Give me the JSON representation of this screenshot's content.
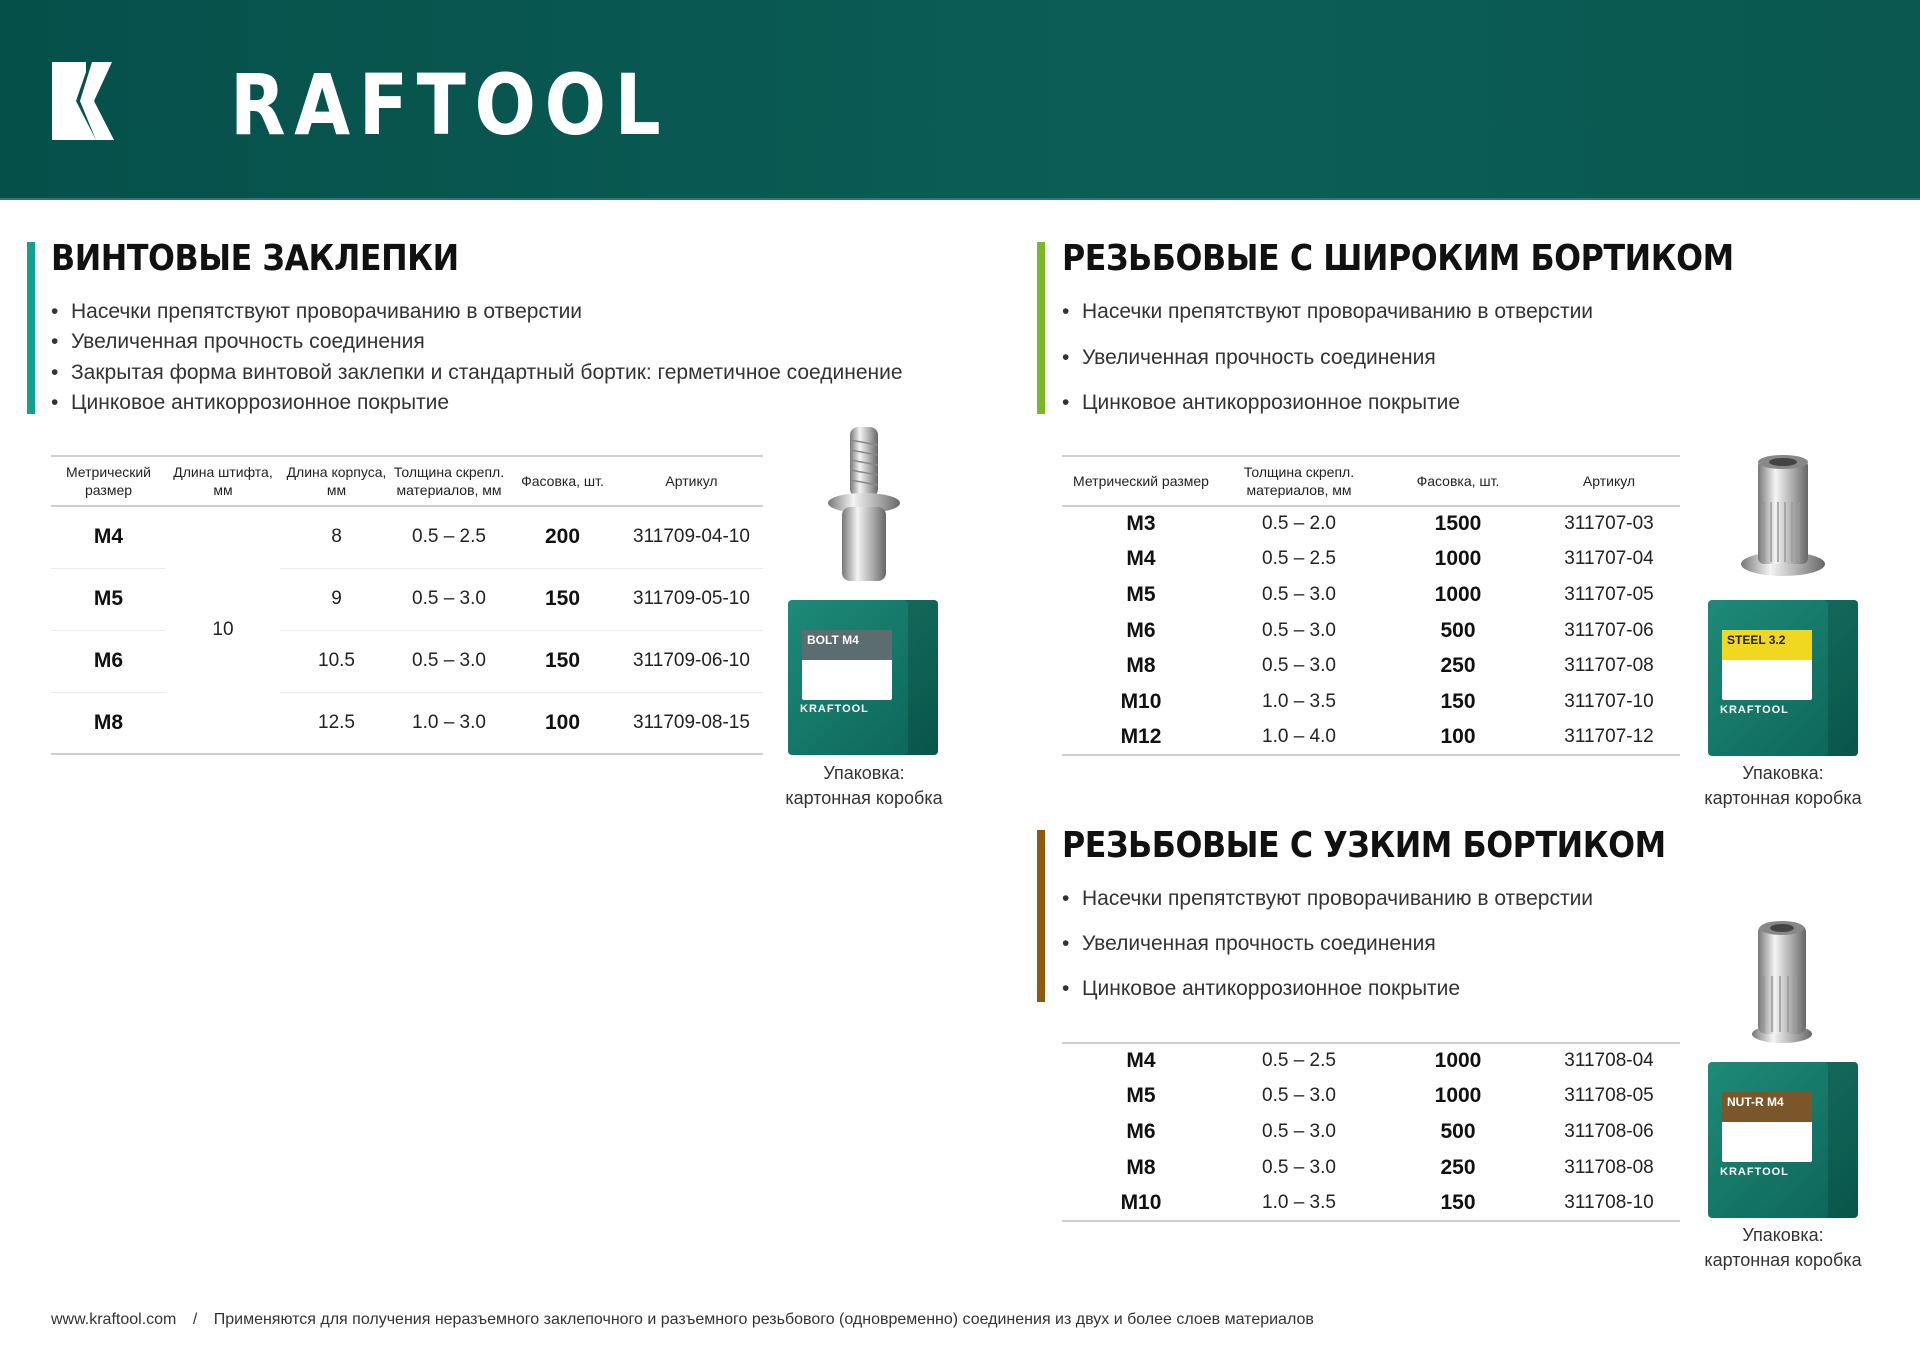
{
  "brand": {
    "logo_text": "KRAFTOOL",
    "color": "#0a5a52"
  },
  "sections": [
    {
      "title": "ВИНТОВЫЕ ЗАКЛЕПКИ",
      "accent": "#13a08f",
      "bullets": [
        "Насечки препятствуют проворачиванию в отверстии",
        "Увеличенная прочность соединения",
        "Закрытая форма винтовой заклепки и стандартный бортик: герметичное соединение",
        "Цинковое антикоррозионное покрытие"
      ],
      "headers": [
        "Метрический размер",
        "Длина штифта, мм",
        "Длина корпуса, мм",
        "Толщина скрепл. материалов, мм",
        "Фасовка, шт.",
        "Артикул"
      ],
      "pin_length": "10",
      "rows": [
        [
          "M4",
          "8",
          "0.5 – 2.5",
          "200",
          "311709-04-10"
        ],
        [
          "M5",
          "9",
          "0.5 – 3.0",
          "150",
          "311709-05-10"
        ],
        [
          "M6",
          "10.5",
          "0.5 – 3.0",
          "150",
          "311709-06-10"
        ],
        [
          "M8",
          "12.5",
          "1.0 – 3.0",
          "100",
          "311709-08-15"
        ]
      ],
      "caption": [
        "Упаковка:",
        "картонная коробка"
      ],
      "box_label": "BOLT M4"
    },
    {
      "title": "РЕЗЬБОВЫЕ С ШИРОКИМ БОРТИКОМ",
      "accent": "#7ab829",
      "bullets": [
        "Насечки препятствуют проворачиванию в отверстии",
        "Увеличенная прочность соединения",
        "Цинковое антикоррозионное покрытие"
      ],
      "headers": [
        "Метрический размер",
        "Толщина скрепл. материалов, мм",
        "Фасовка, шт.",
        "Артикул"
      ],
      "rows": [
        [
          "M3",
          "0.5 – 2.0",
          "1500",
          "311707-03"
        ],
        [
          "M4",
          "0.5 – 2.5",
          "1000",
          "311707-04"
        ],
        [
          "M5",
          "0.5 – 3.0",
          "1000",
          "311707-05"
        ],
        [
          "M6",
          "0.5 – 3.0",
          "500",
          "311707-06"
        ],
        [
          "M8",
          "0.5 – 3.0",
          "250",
          "311707-08"
        ],
        [
          "M10",
          "1.0 – 3.5",
          "150",
          "311707-10"
        ],
        [
          "M12",
          "1.0 – 4.0",
          "100",
          "311707-12"
        ]
      ],
      "caption": [
        "Упаковка:",
        "картонная коробка"
      ],
      "box_label": "STEEL 3.2"
    },
    {
      "title": "РЕЗЬБОВЫЕ С УЗКИМ БОРТИКОМ",
      "accent": "#8a5a10",
      "bullets": [
        "Насечки препятствуют проворачиванию в отверстии",
        "Увеличенная прочность соединения",
        "Цинковое антикоррозионное покрытие"
      ],
      "rows": [
        [
          "M4",
          "0.5 – 2.5",
          "1000",
          "311708-04"
        ],
        [
          "M5",
          "0.5 – 3.0",
          "1000",
          "311708-05"
        ],
        [
          "M6",
          "0.5 – 3.0",
          "500",
          "311708-06"
        ],
        [
          "M8",
          "0.5 – 3.0",
          "250",
          "311708-08"
        ],
        [
          "M10",
          "1.0 – 3.5",
          "150",
          "311708-10"
        ]
      ],
      "caption": [
        "Упаковка:",
        "картонная коробка"
      ],
      "box_label": "NUT-R M4"
    }
  ],
  "footer": {
    "url": "www.kraftool.com",
    "separator": "/",
    "text": "Применяются для получения неразъемного заклепочного и разъемного резьбового (одновременно) соединения из двух и более слоев материалов"
  }
}
